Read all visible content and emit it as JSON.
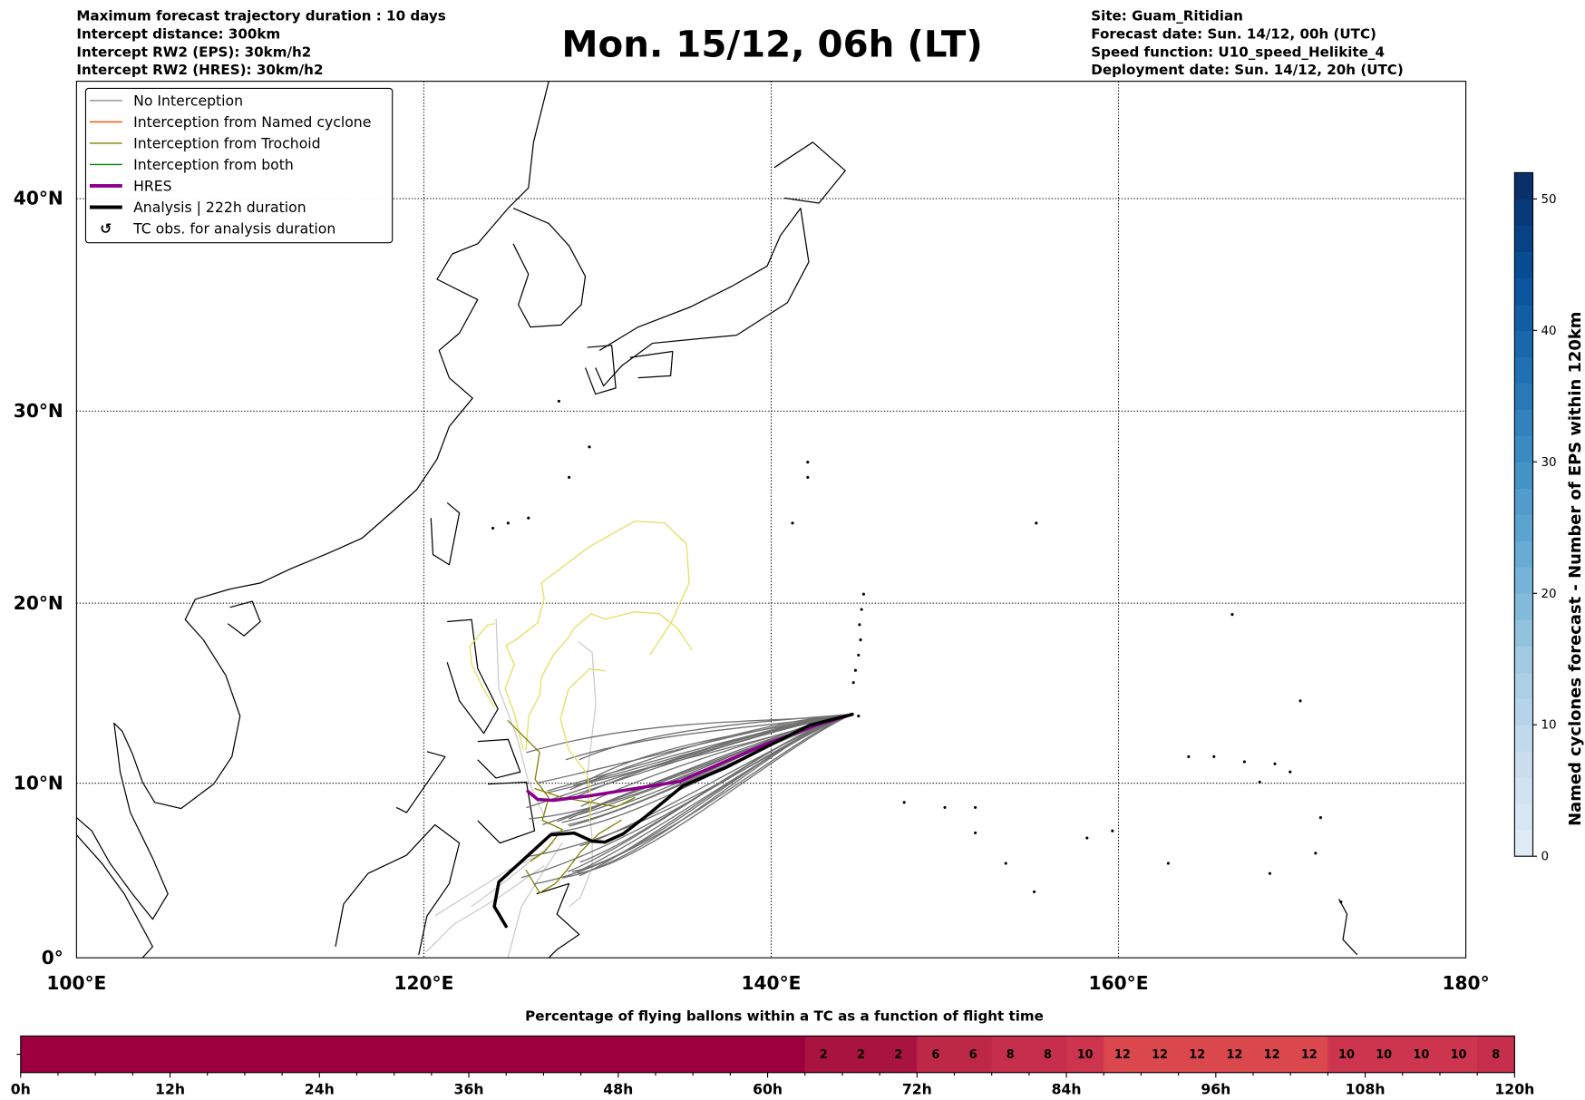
{
  "header": {
    "left": [
      "Maximum forecast trajectory duration : 10 days",
      "Intercept distance: 300km",
      "Intercept RW2 (EPS):  30km/h2",
      "Intercept RW2 (HRES): 30km/h2"
    ],
    "title": "Mon. 15/12, 06h (LT)",
    "right": [
      "Site: Guam_Ritidian",
      "Forecast date: Sun. 14/12, 00h (UTC)",
      "Speed function: U10_speed_Helikite_4",
      "Deployment date: Sun. 14/12, 20h (UTC)"
    ]
  },
  "map": {
    "lon_range": [
      100,
      180
    ],
    "lat_range": [
      0,
      45.4
    ],
    "x_ticks": [
      {
        "lon": 100,
        "label": "100°E"
      },
      {
        "lon": 120,
        "label": "120°E"
      },
      {
        "lon": 140,
        "label": "140°E"
      },
      {
        "lon": 160,
        "label": "160°E"
      },
      {
        "lon": 180,
        "label": "180°"
      }
    ],
    "y_ticks": [
      {
        "lat": 0,
        "label": "0°"
      },
      {
        "lat": 10,
        "label": "10°N"
      },
      {
        "lat": 20,
        "label": "20°N"
      },
      {
        "lat": 30,
        "label": "30°N"
      },
      {
        "lat": 40,
        "label": "40°N"
      }
    ]
  },
  "legend": [
    {
      "label": "No Interception",
      "color": "#808080",
      "kind": "thin"
    },
    {
      "label": "Interception from Named cyclone",
      "color": "#ff4500",
      "kind": "thin"
    },
    {
      "label": "Interception from Trochoid",
      "color": "#808000",
      "kind": "thin"
    },
    {
      "label": "Interception from both",
      "color": "#008000",
      "kind": "thin"
    },
    {
      "label": "HRES",
      "color": "#8b008b",
      "kind": "thick"
    },
    {
      "label": "Analysis | 222h duration",
      "color": "#000000",
      "kind": "thick"
    },
    {
      "label": "TC obs. for analysis duration",
      "color": "#000000",
      "kind": "marker"
    }
  ],
  "colorbar": {
    "label": "Named cyclones forecast - Number of EPS within 120km",
    "min": 0,
    "max": 52,
    "levels": 26,
    "ticks": [
      "0",
      "10",
      "20",
      "30",
      "40",
      "50"
    ]
  },
  "timebar": {
    "title": "Percentage of flying ballons within a TC as a function of flight time",
    "tick_labels": [
      "0h",
      "12h",
      "24h",
      "36h",
      "48h",
      "60h",
      "72h",
      "84h",
      "96h",
      "108h",
      "120h"
    ],
    "bin_hours": 3,
    "values": [
      0,
      0,
      0,
      0,
      0,
      0,
      0,
      0,
      0,
      0,
      0,
      0,
      0,
      0,
      0,
      0,
      0,
      0,
      0,
      0,
      0,
      2,
      2,
      2,
      6,
      6,
      8,
      8,
      10,
      12,
      12,
      12,
      12,
      12,
      12,
      10,
      10,
      10,
      10,
      8
    ]
  },
  "colors": {
    "hres": "#8b008b",
    "analysis": "#000000",
    "no_interception": "#6e6e6e",
    "trochoid": "#808000",
    "trochoid_light": "#e0e060"
  }
}
